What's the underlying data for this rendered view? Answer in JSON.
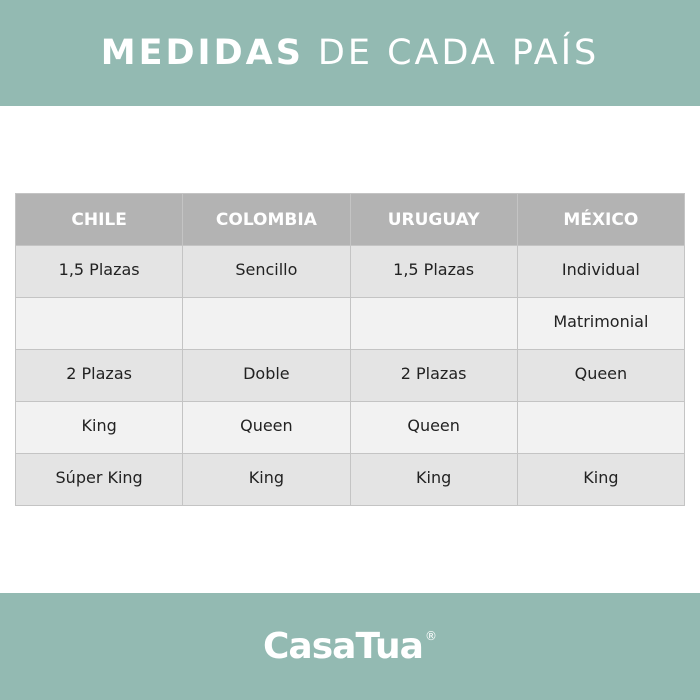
{
  "header": {
    "title_bold": "MEDIDAS",
    "title_light": "DE CADA PAÍS"
  },
  "table": {
    "columns": [
      "CHILE",
      "COLOMBIA",
      "URUGUAY",
      "MÉXICO"
    ],
    "rows": [
      [
        "1,5 Plazas",
        "Sencillo",
        "1,5 Plazas",
        "Individual"
      ],
      [
        "",
        "",
        "",
        "Matrimonial"
      ],
      [
        "2 Plazas",
        "Doble",
        "2 Plazas",
        "Queen"
      ],
      [
        "King",
        "Queen",
        "Queen",
        ""
      ],
      [
        "Súper King",
        "King",
        "King",
        "King"
      ]
    ]
  },
  "footer": {
    "logo": "CasaTua",
    "registered": "®"
  },
  "colors": {
    "brand": "#93bab2",
    "header_row": "#b3b3b3",
    "row_dark": "#e4e4e4",
    "row_light": "#f2f2f2"
  }
}
